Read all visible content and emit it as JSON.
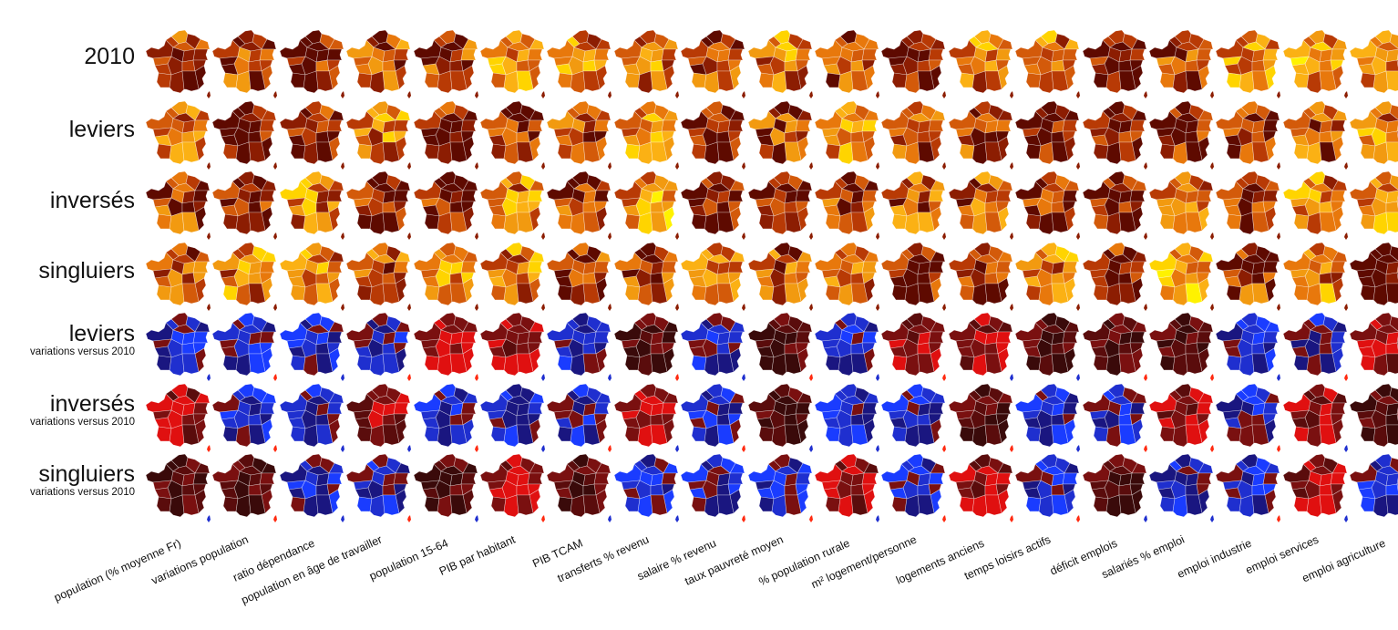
{
  "rows": [
    {
      "label": "2010",
      "sub": ""
    },
    {
      "label": "leviers",
      "sub": ""
    },
    {
      "label": "inversés",
      "sub": ""
    },
    {
      "label": "singluiers",
      "sub": ""
    },
    {
      "label": "leviers",
      "sub": "variations versus 2010"
    },
    {
      "label": "inversés",
      "sub": "variations versus 2010"
    },
    {
      "label": "singluiers",
      "sub": "variations versus 2010"
    }
  ],
  "columns": [
    "population (% moyenne Fr)",
    "variations population",
    "ratio dépendance",
    "population en âge de travailler",
    "population 15-64",
    "PIB par habitant",
    "PIB TCAM",
    "transferts % revenu",
    "salaire % revenu",
    "taux pauvreté moyen",
    "% population rurale",
    "m² logement/personne",
    "logements anciens",
    "temps loisirs actifs",
    "déficit emplois",
    "salariés % emploi",
    "emploi industrie",
    "emploi services",
    "emploi agriculture"
  ],
  "palettes": {
    "heat": [
      "#fff200",
      "#ffd400",
      "#fbb114",
      "#f29a10",
      "#e8780c",
      "#d35a0a",
      "#b83a05",
      "#8c1d02",
      "#5e0a00"
    ],
    "diverging": [
      "#0a0a2e",
      "#1a1680",
      "#1f2fcf",
      "#1a3cff",
      "#2244ff",
      "#3a0a0a",
      "#5a0c0c",
      "#7a1010",
      "#e01010",
      "#ff2a10"
    ]
  }
}
